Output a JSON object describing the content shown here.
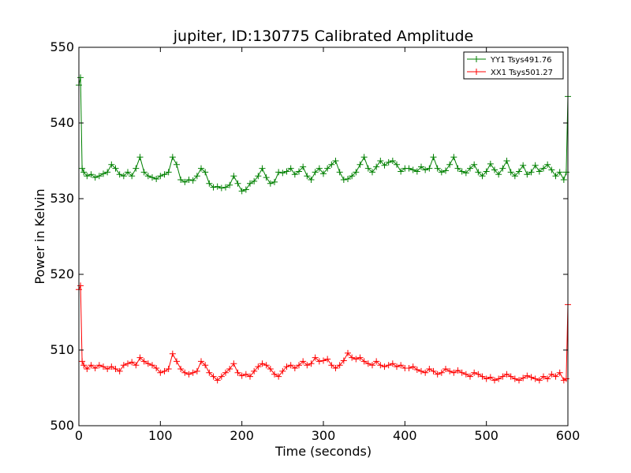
{
  "chart_data": {
    "type": "line",
    "title": "jupiter, ID:130775 Calibrated Amplitude",
    "xlabel": "Time (seconds)",
    "ylabel": "Power in Kelvin",
    "xlim": [
      0,
      600
    ],
    "ylim": [
      500,
      550
    ],
    "xticks": [
      0,
      100,
      200,
      300,
      400,
      500,
      600
    ],
    "yticks": [
      500,
      510,
      520,
      530,
      540,
      550
    ],
    "grid": false,
    "legend_position": "top-right",
    "marker": "+",
    "series": [
      {
        "name": "YY1 Tsys491.76",
        "color": "#008000",
        "x": [
          0,
          2,
          4,
          6,
          10,
          15,
          20,
          25,
          30,
          35,
          40,
          45,
          50,
          55,
          60,
          65,
          70,
          75,
          80,
          85,
          90,
          95,
          100,
          105,
          110,
          115,
          120,
          125,
          130,
          135,
          140,
          145,
          150,
          155,
          160,
          165,
          170,
          175,
          180,
          185,
          190,
          195,
          200,
          205,
          210,
          215,
          220,
          225,
          230,
          235,
          240,
          245,
          250,
          255,
          260,
          265,
          270,
          275,
          280,
          285,
          290,
          295,
          300,
          305,
          310,
          315,
          320,
          325,
          330,
          335,
          340,
          345,
          350,
          355,
          360,
          365,
          370,
          375,
          380,
          385,
          390,
          395,
          400,
          405,
          410,
          415,
          420,
          425,
          430,
          435,
          440,
          445,
          450,
          455,
          460,
          465,
          470,
          475,
          480,
          485,
          490,
          495,
          500,
          505,
          510,
          515,
          520,
          525,
          530,
          535,
          540,
          545,
          550,
          555,
          560,
          565,
          570,
          575,
          580,
          585,
          590,
          595,
          598,
          600
        ],
        "y": [
          545,
          546,
          534,
          533.5,
          533,
          533.2,
          532.8,
          533,
          533.3,
          533.5,
          534.5,
          534,
          533.2,
          533,
          533.5,
          533,
          534,
          535.5,
          533.5,
          533,
          532.8,
          532.6,
          533,
          533.2,
          533.5,
          535.5,
          534.5,
          532.5,
          532.2,
          532.5,
          532.4,
          533,
          534,
          533.5,
          532,
          531.5,
          531.6,
          531.4,
          531.5,
          531.8,
          533,
          532,
          531,
          531.2,
          532,
          532.3,
          533,
          534,
          532.8,
          532,
          532.2,
          533.5,
          533.4,
          533.6,
          534,
          533.2,
          533.6,
          534.2,
          533,
          532.5,
          533.5,
          534,
          533.3,
          534,
          534.5,
          535,
          533.5,
          532.5,
          532.6,
          533,
          533.5,
          534.5,
          535.5,
          534,
          533.5,
          534.2,
          535,
          534.4,
          534.8,
          535,
          534.5,
          533.6,
          534,
          534,
          533.8,
          533.6,
          534.2,
          533.8,
          534,
          535.5,
          534,
          533.5,
          533.7,
          534.5,
          535.5,
          534,
          533.6,
          533.4,
          534,
          534.5,
          533.5,
          533,
          533.6,
          534.6,
          533.8,
          533.2,
          534,
          535,
          533.5,
          533,
          533.6,
          534.4,
          533.2,
          533.5,
          534.4,
          533.6,
          534,
          534.5,
          533.8,
          533,
          533.5,
          532.5,
          533.5,
          543.5
        ]
      },
      {
        "name": "XX1 Tsys501.27",
        "color": "#ff0000",
        "x": [
          0,
          2,
          4,
          6,
          10,
          15,
          20,
          25,
          30,
          35,
          40,
          45,
          50,
          55,
          60,
          65,
          70,
          75,
          80,
          85,
          90,
          95,
          100,
          105,
          110,
          115,
          120,
          125,
          130,
          135,
          140,
          145,
          150,
          155,
          160,
          165,
          170,
          175,
          180,
          185,
          190,
          195,
          200,
          205,
          210,
          215,
          220,
          225,
          230,
          235,
          240,
          245,
          250,
          255,
          260,
          265,
          270,
          275,
          280,
          285,
          290,
          295,
          300,
          305,
          310,
          315,
          320,
          325,
          330,
          335,
          340,
          345,
          350,
          355,
          360,
          365,
          370,
          375,
          380,
          385,
          390,
          395,
          400,
          405,
          410,
          415,
          420,
          425,
          430,
          435,
          440,
          445,
          450,
          455,
          460,
          465,
          470,
          475,
          480,
          485,
          490,
          495,
          500,
          505,
          510,
          515,
          520,
          525,
          530,
          535,
          540,
          545,
          550,
          555,
          560,
          565,
          570,
          575,
          580,
          585,
          590,
          595,
          598,
          600
        ],
        "y": [
          518,
          518.5,
          508.5,
          508,
          507.5,
          508,
          507.6,
          508,
          507.8,
          507.5,
          507.8,
          507.5,
          507.2,
          508,
          508.2,
          508.4,
          508,
          509,
          508.5,
          508.2,
          508,
          507.6,
          507,
          507.2,
          507.5,
          509.5,
          508.5,
          507.5,
          507,
          506.8,
          507,
          507.2,
          508.5,
          508,
          507,
          506.5,
          506,
          506.5,
          507,
          507.5,
          508.2,
          507,
          506.6,
          506.8,
          506.5,
          507.2,
          507.8,
          508.2,
          508,
          507.5,
          506.8,
          506.5,
          507.2,
          507.8,
          508,
          507.6,
          508,
          508.5,
          508,
          508.2,
          509,
          508.5,
          508.6,
          508.8,
          508,
          507.6,
          508,
          508.6,
          509.6,
          509,
          508.8,
          509,
          508.5,
          508.2,
          508,
          508.5,
          508,
          507.8,
          508,
          508.2,
          507.8,
          508,
          507.6,
          507.6,
          507.8,
          507.4,
          507.2,
          507,
          507.5,
          507.2,
          506.8,
          507,
          507.5,
          507.2,
          507,
          507.3,
          507,
          506.8,
          506.5,
          507,
          506.8,
          506.5,
          506.2,
          506.4,
          506,
          506.2,
          506.5,
          506.8,
          506.5,
          506.2,
          506,
          506.3,
          506.6,
          506.4,
          506.2,
          506,
          506.5,
          506.2,
          506.8,
          506.5,
          507,
          506,
          506.2,
          516
        ]
      }
    ]
  }
}
